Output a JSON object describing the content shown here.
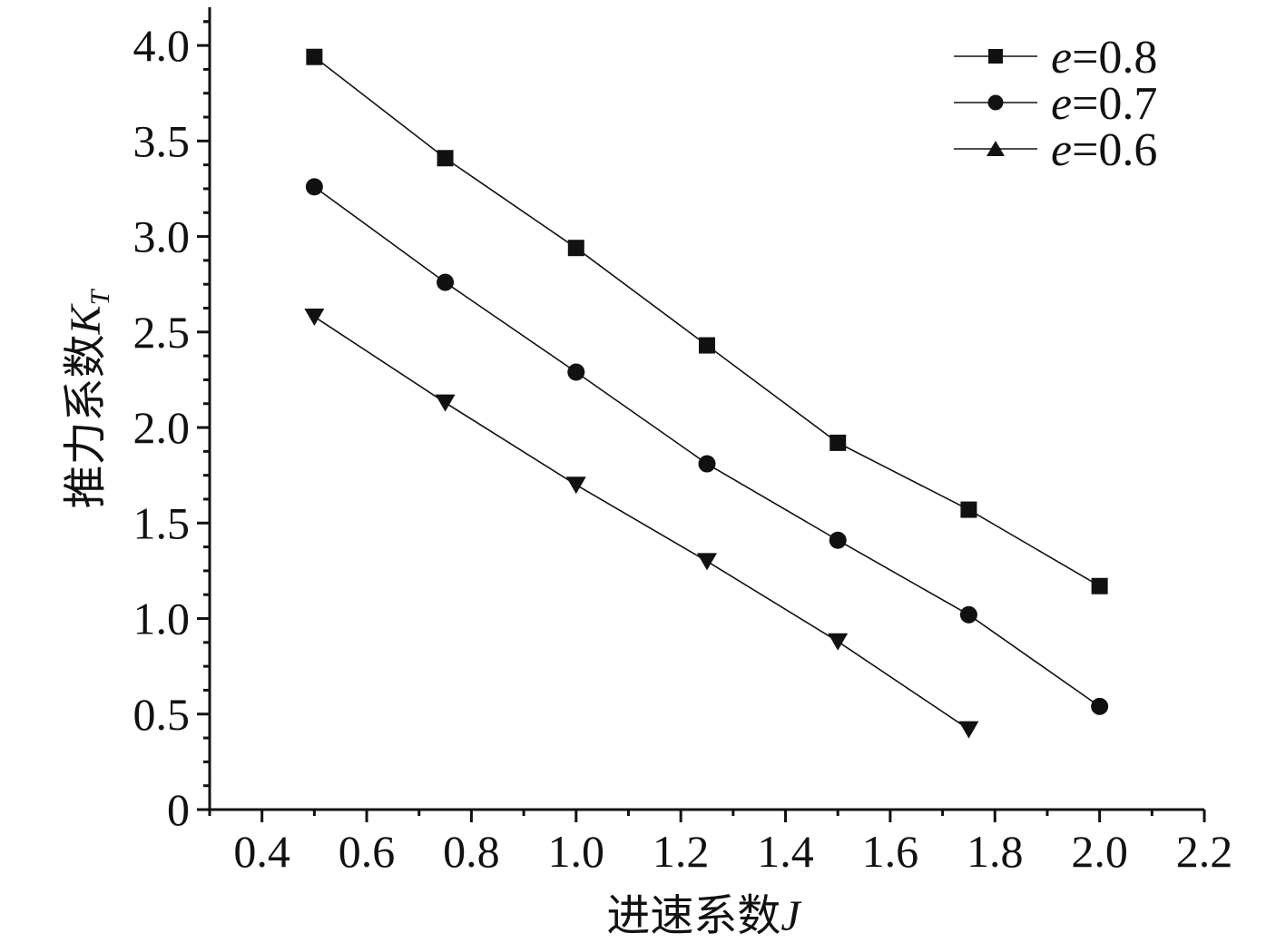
{
  "chart_data": {
    "type": "line",
    "xlabel": "进速系数",
    "xlabel_var": "J",
    "ylabel": "推力系数",
    "ylabel_var": "K",
    "ylabel_sub": "T",
    "xlim": [
      0.3,
      2.2
    ],
    "ylim": [
      0,
      4.2
    ],
    "x_ticks": [
      0.4,
      0.6,
      0.8,
      1.0,
      1.2,
      1.4,
      1.6,
      1.8,
      2.0,
      2.2
    ],
    "x_tick_labels": [
      "0.4",
      "0.6",
      "0.8",
      "1.0",
      "1.2",
      "1.4",
      "1.6",
      "1.8",
      "2.0",
      "2.2"
    ],
    "y_ticks": [
      0,
      0.5,
      1.0,
      1.5,
      2.0,
      2.5,
      3.0,
      3.5,
      4.0
    ],
    "y_tick_labels": [
      "0",
      "0.5",
      "1.0",
      "1.5",
      "2.0",
      "2.5",
      "3.0",
      "3.5",
      "4.0"
    ],
    "grid": false,
    "legend_position": "top-right",
    "series": [
      {
        "name": "=0.8",
        "legend_prefix": "e",
        "marker": "square",
        "x": [
          0.5,
          0.75,
          1.0,
          1.25,
          1.5,
          1.75,
          2.0
        ],
        "y": [
          3.94,
          3.41,
          2.94,
          2.43,
          1.92,
          1.57,
          1.17
        ]
      },
      {
        "name": "=0.7",
        "legend_prefix": "e",
        "marker": "circle",
        "x": [
          0.5,
          0.75,
          1.0,
          1.25,
          1.5,
          1.75,
          2.0
        ],
        "y": [
          3.26,
          2.76,
          2.29,
          1.81,
          1.41,
          1.02,
          0.54
        ]
      },
      {
        "name": "=0.6",
        "legend_prefix": "e",
        "marker": "triangle-down",
        "legend_marker": "triangle-up",
        "x": [
          0.5,
          0.75,
          1.0,
          1.25,
          1.5,
          1.75
        ],
        "y": [
          2.58,
          2.13,
          1.7,
          1.3,
          0.88,
          0.42
        ]
      }
    ]
  },
  "colors": {
    "line": "#111111",
    "marker": "#111111",
    "background": "#ffffff"
  }
}
